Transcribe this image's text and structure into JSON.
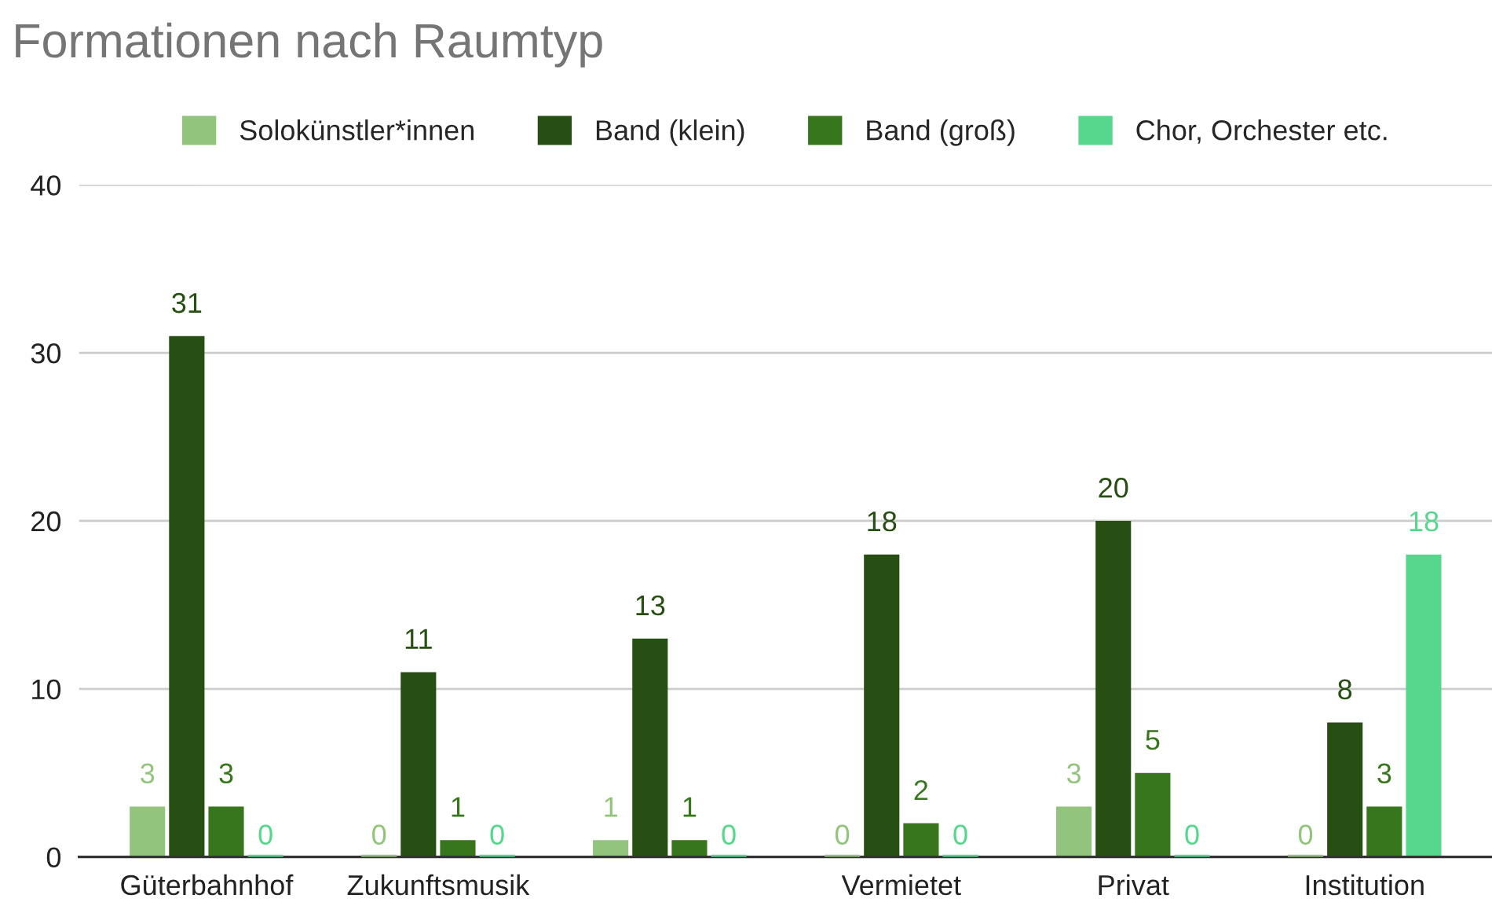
{
  "chart_data": {
    "type": "bar",
    "title": "Formationen nach Raumtyp",
    "categories": [
      "Güterbahnhof",
      "Zukunftsmusik",
      null,
      "Vermietet",
      "Privat",
      "Institution"
    ],
    "series": [
      {
        "name": "Solokünstler*innen",
        "color": "#93c47d",
        "values": [
          3,
          0,
          1,
          0,
          3,
          0
        ]
      },
      {
        "name": "Band (klein)",
        "color": "#274e13",
        "values": [
          31,
          11,
          13,
          18,
          20,
          8
        ]
      },
      {
        "name": "Band (groß)",
        "color": "#38761d",
        "values": [
          3,
          1,
          1,
          2,
          5,
          3
        ]
      },
      {
        "name": "Chor, Orchester etc.",
        "color": "#57d68d",
        "values": [
          0,
          0,
          0,
          0,
          0,
          18
        ]
      }
    ],
    "ylim": [
      0,
      40
    ],
    "yticks": [
      0,
      10,
      20,
      30,
      40
    ],
    "grid": "y",
    "legend": "top",
    "data_labels": true
  }
}
